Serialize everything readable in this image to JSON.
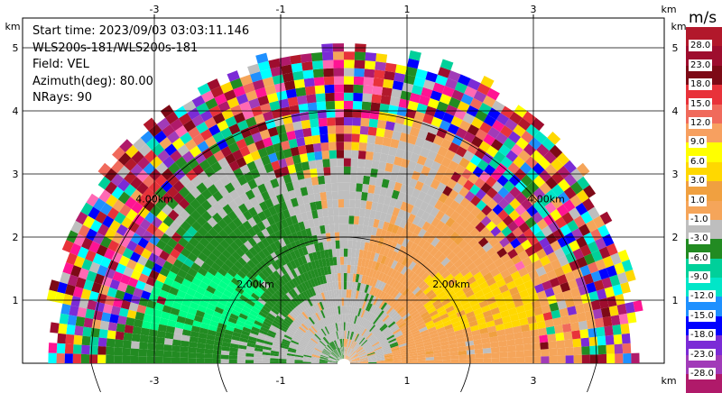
{
  "info_lines": [
    "Start time: 2023/09/03 03:03:11.146",
    "WLS200s-181/WLS200s-181",
    "Field: VEL",
    "Azimuth(deg): 80.00",
    "NRays: 90"
  ],
  "chart_data": {
    "type": "heatmap",
    "xlabel": "km",
    "ylabel": "km",
    "x_ticks": [
      -3,
      -1,
      1,
      3
    ],
    "y_ticks": [
      1,
      2,
      3,
      4,
      5
    ],
    "xlim": [
      -5.0,
      5.0
    ],
    "ylim": [
      0,
      5.4
    ],
    "range_ring_labels": [
      "2.00km",
      "4.00km"
    ],
    "colorbar": {
      "unit": "m/s",
      "levels": [
        "28.0",
        "23.0",
        "18.0",
        "15.0",
        "12.0",
        "9.0",
        "6.0",
        "3.0",
        "1.0",
        "-1.0",
        "-3.0",
        "-6.0",
        "-9.0",
        "-12.0",
        "-15.0",
        "-18.0",
        "-23.0",
        "-28.0"
      ],
      "colors": [
        "#b2182b",
        "#9e0d2e",
        "#7d0a16",
        "#e8323a",
        "#f06a5c",
        "#f7a060",
        "#ffff00",
        "#ffd800",
        "#f0a040",
        "#f5a55a",
        "#bebebe",
        "#228b22",
        "#00d09a",
        "#00e6c8",
        "#1e90ff",
        "#0000ff",
        "#7b2bd6",
        "#a13bb8",
        "#b01a6a"
      ]
    }
  }
}
